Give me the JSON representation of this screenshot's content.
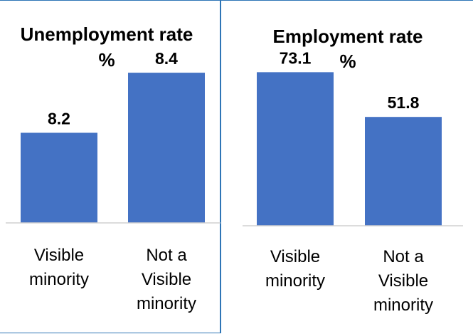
{
  "chart_data": [
    {
      "type": "bar",
      "title": "Unemployment rate %",
      "categories": [
        "Visible minority",
        "Not a Visible minority"
      ],
      "values": [
        8.2,
        8.4
      ],
      "value_labels": [
        "8.2",
        "8.4"
      ],
      "xlabel": "",
      "ylabel": "",
      "ylim": [
        7.9,
        8.45
      ],
      "grid": false,
      "legend": "none",
      "color": "#4472c4"
    },
    {
      "type": "bar",
      "title": "Employment rate %",
      "categories": [
        "Visible minority",
        "Not a Visible minority"
      ],
      "values": [
        73.1,
        51.8
      ],
      "value_labels": [
        "73.1",
        "51.8"
      ],
      "xlabel": "",
      "ylabel": "",
      "ylim": [
        0,
        80
      ],
      "grid": false,
      "legend": "none",
      "color": "#4472c4"
    }
  ]
}
